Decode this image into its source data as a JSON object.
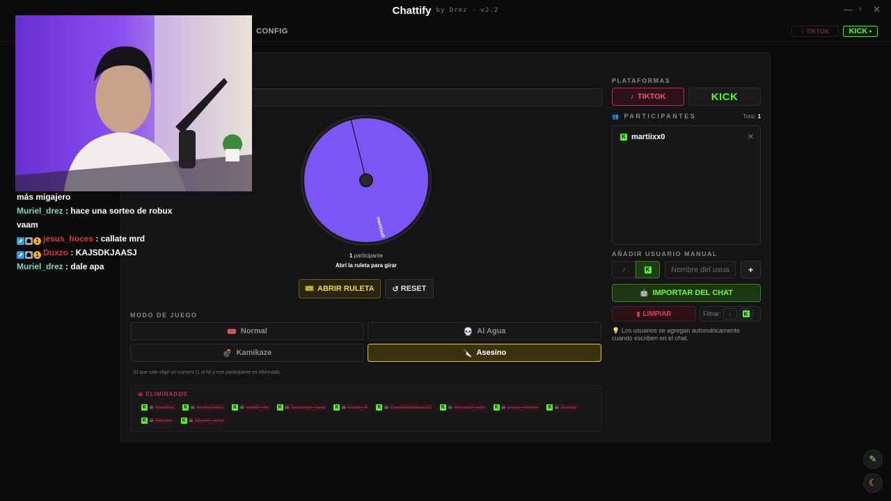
{
  "window": {
    "title": "Chattify",
    "subtitle": "by Drez · v2.2",
    "controls": {
      "minimize": "—",
      "maximize": "▫",
      "close": "✕"
    }
  },
  "nav": {
    "config_label": "CONFIG",
    "tiktok_label": "TIKTOK",
    "kick_label": "KICK"
  },
  "wheel": {
    "participant_count": "1",
    "participant_word": "participante",
    "cta": "Abrí la ruleta para girar",
    "slice_label": "martiixx0",
    "slice_color": "#7b55f5"
  },
  "buttons": {
    "open_wheel": "ABRIR RULETA",
    "reset": "RESET"
  },
  "game_mode": {
    "label": "MODO DE JUEGO",
    "options": [
      {
        "label": "Normal",
        "icon": "🎟️"
      },
      {
        "label": "Al Agua",
        "icon": "💀"
      },
      {
        "label": "Kamikaze",
        "icon": "💣"
      },
      {
        "label": "Asesino",
        "icon": "🔪"
      }
    ],
    "selected": "Asesino",
    "description": "El que sale elige un número (1 al N) y ese participante es eliminado."
  },
  "eliminated": {
    "title": "ELIMINADOS",
    "items": [
      "KickBot",
      "lincho1682",
      "mali0_0n",
      "Sarango_owo",
      "Code_Y",
      "DaniVillalobos12",
      "Amarall_xdd",
      "jesus_hoces",
      "Duxzo",
      "Shinko",
      "Muriel_drez"
    ]
  },
  "platforms": {
    "label": "PLATAFORMAS",
    "tiktok": "TIKTOK",
    "kick": "KICK"
  },
  "participants": {
    "label": "PARTICIPANTES",
    "total_label": "Total:",
    "total": "1",
    "items": [
      {
        "name": "martiixx0",
        "platform": "kick"
      }
    ]
  },
  "manual_add": {
    "label": "AÑADIR USUARIO MANUAL",
    "placeholder": "Nombre del usuario",
    "add": "+"
  },
  "import_button": "IMPORTAR DEL CHAT",
  "clear_button": "LIMPIAR",
  "filter_label": "Filtrar:",
  "note": "Los usuarios se agregan automáticamente cuando escriben en el chat.",
  "chat": [
    {
      "user": "",
      "message": "más migajero"
    },
    {
      "user": "Muriel_drez",
      "message": "hace una sorteo de robux vaam"
    },
    {
      "user": "jesus_hoces",
      "message": "callate mrd"
    },
    {
      "user": "Duxzo",
      "message": "KAJSDKJAASJ"
    },
    {
      "user": "Muriel_drez",
      "message": "dale apa"
    }
  ],
  "colors": {
    "kick_green": "#53fc18",
    "tiktok_red": "#ff4d73",
    "gold": "#e4c52e",
    "purple": "#7b55f5"
  }
}
